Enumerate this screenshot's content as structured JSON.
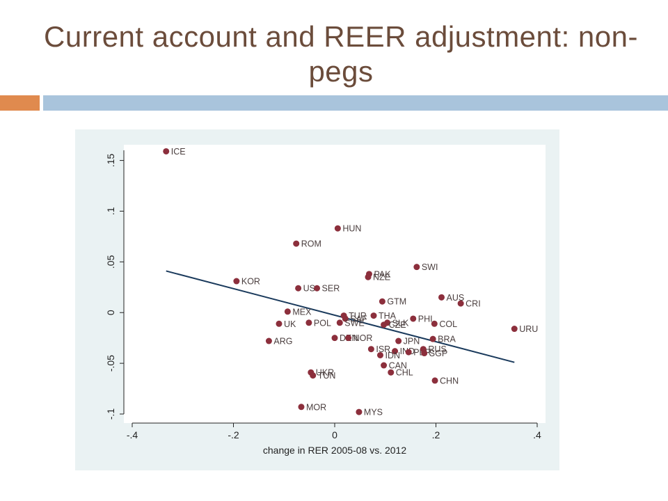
{
  "slide": {
    "title_line1": "Current account and REER adjustment: non-",
    "title_line2": "pegs"
  },
  "colors": {
    "title": "#6b4c3b",
    "accent_orange": "#e08a4e",
    "accent_blue": "#a9c4dc",
    "chart_background": "#eaf2f3",
    "point": "#8c2f3c",
    "fit_line": "#1a3a5c"
  },
  "chart_data": {
    "type": "scatter",
    "title": "",
    "xlabel": "change in RER 2005-08 vs. 2012",
    "ylabel": "",
    "xlim": [
      -0.4,
      0.4
    ],
    "ylim": [
      -0.1,
      0.16
    ],
    "xticks": [
      -0.4,
      -0.2,
      0,
      0.2,
      0.4
    ],
    "xtick_labels": [
      "-.4",
      "-.2",
      "0",
      ".2",
      ".4"
    ],
    "yticks": [
      -0.1,
      -0.05,
      0,
      0.05,
      0.1,
      0.15
    ],
    "ytick_labels": [
      "-.1",
      "-.05",
      "0",
      ".05",
      ".1",
      ".15"
    ],
    "grid": false,
    "points": [
      {
        "label": "ICE",
        "x": -0.333,
        "y": 0.159
      },
      {
        "label": "HUN",
        "x": 0.006,
        "y": 0.083
      },
      {
        "label": "ROM",
        "x": -0.076,
        "y": 0.068
      },
      {
        "label": "SWI",
        "x": 0.162,
        "y": 0.045
      },
      {
        "label": "PAK",
        "x": 0.068,
        "y": 0.038
      },
      {
        "label": "NZE",
        "x": 0.066,
        "y": 0.035
      },
      {
        "label": "KOR",
        "x": -0.194,
        "y": 0.031
      },
      {
        "label": "US",
        "x": -0.072,
        "y": 0.024
      },
      {
        "label": "SER",
        "x": -0.035,
        "y": 0.024
      },
      {
        "label": "AUS",
        "x": 0.211,
        "y": 0.015
      },
      {
        "label": "CRI",
        "x": 0.249,
        "y": 0.009
      },
      {
        "label": "GTM",
        "x": 0.094,
        "y": 0.011
      },
      {
        "label": "MEX",
        "x": -0.093,
        "y": 0.001
      },
      {
        "label": "THA",
        "x": 0.077,
        "y": -0.003
      },
      {
        "label": "TUR",
        "x": 0.018,
        "y": -0.003
      },
      {
        "label": "SAF",
        "x": 0.021,
        "y": -0.006
      },
      {
        "label": "PHI",
        "x": 0.155,
        "y": -0.006
      },
      {
        "label": "UK",
        "x": -0.11,
        "y": -0.011
      },
      {
        "label": "POL",
        "x": -0.051,
        "y": -0.01
      },
      {
        "label": "SWE",
        "x": 0.01,
        "y": -0.01
      },
      {
        "label": "SLK",
        "x": 0.104,
        "y": -0.01
      },
      {
        "label": "CZE",
        "x": 0.097,
        "y": -0.012
      },
      {
        "label": "COL",
        "x": 0.197,
        "y": -0.011
      },
      {
        "label": "URU",
        "x": 0.355,
        "y": -0.016
      },
      {
        "label": "ARG",
        "x": -0.13,
        "y": -0.028
      },
      {
        "label": "DEN",
        "x": 0.0,
        "y": -0.025
      },
      {
        "label": "NOR",
        "x": 0.027,
        "y": -0.025
      },
      {
        "label": "JPN",
        "x": 0.126,
        "y": -0.028
      },
      {
        "label": "BRA",
        "x": 0.194,
        "y": -0.026
      },
      {
        "label": "ISR",
        "x": 0.072,
        "y": -0.036
      },
      {
        "label": "IND",
        "x": 0.119,
        "y": -0.038
      },
      {
        "label": "PER",
        "x": 0.146,
        "y": -0.039
      },
      {
        "label": "RUS",
        "x": 0.175,
        "y": -0.036
      },
      {
        "label": "SGP",
        "x": 0.177,
        "y": -0.04
      },
      {
        "label": "IDN",
        "x": 0.09,
        "y": -0.042
      },
      {
        "label": "CAN",
        "x": 0.097,
        "y": -0.052
      },
      {
        "label": "CHL",
        "x": 0.111,
        "y": -0.059
      },
      {
        "label": "UKR",
        "x": -0.047,
        "y": -0.059
      },
      {
        "label": "TUN",
        "x": -0.043,
        "y": -0.062
      },
      {
        "label": "CHN",
        "x": 0.198,
        "y": -0.067
      },
      {
        "label": "MOR",
        "x": -0.066,
        "y": -0.093
      },
      {
        "label": "MYS",
        "x": 0.048,
        "y": -0.098
      }
    ],
    "fit_line": [
      {
        "x": -0.333,
        "y": 0.041
      },
      {
        "x": 0.355,
        "y": -0.049
      }
    ]
  }
}
